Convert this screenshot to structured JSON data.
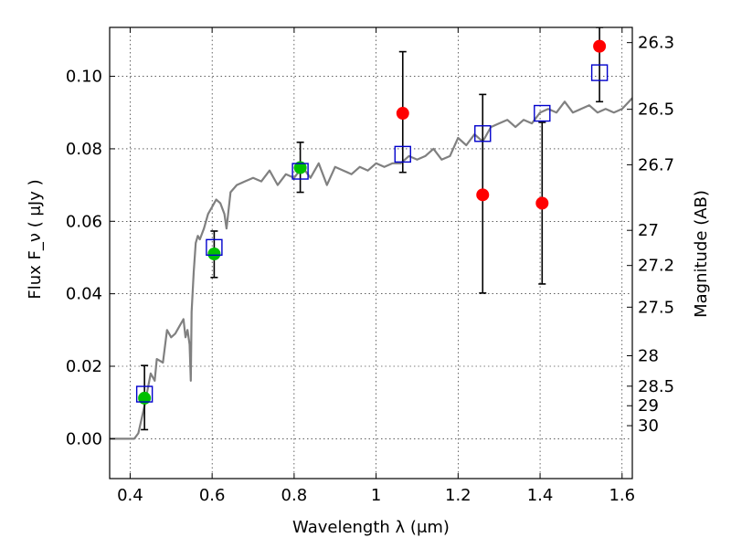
{
  "chart_data": {
    "type": "scatter",
    "xlabel": "Wavelength λ (μm)",
    "ylabel": "Flux F_ν ( μJy )",
    "y2label": "Magnitude (AB)",
    "xlim": [
      0.35,
      1.625
    ],
    "ylim": [
      -0.011,
      0.1135
    ],
    "xticks": [
      0.4,
      0.6,
      0.8,
      1.0,
      1.2,
      1.4,
      1.6
    ],
    "xtick_labels": [
      "0.4",
      "0.6",
      "0.8",
      "1",
      "1.2",
      "1.4",
      "1.6"
    ],
    "yticks": [
      0.0,
      0.02,
      0.04,
      0.06,
      0.08,
      0.1
    ],
    "ytick_labels": [
      "0.00",
      "0.02",
      "0.04",
      "0.06",
      "0.08",
      "0.10"
    ],
    "magnitude_ticks": [
      {
        "label": "26.3",
        "flux": 0.1093
      },
      {
        "label": "26.5",
        "flux": 0.0909
      },
      {
        "label": "26.7",
        "flux": 0.0756
      },
      {
        "label": "27",
        "flux": 0.0575
      },
      {
        "label": "27.2",
        "flux": 0.0478
      },
      {
        "label": "27.5",
        "flux": 0.0363
      },
      {
        "label": "28",
        "flux": 0.0229
      },
      {
        "label": "28.5",
        "flux": 0.0145
      },
      {
        "label": "29",
        "flux": 0.0091
      },
      {
        "label": "30",
        "flux": 0.0036
      }
    ],
    "grid": true,
    "colors": {
      "model": "#808080",
      "green_points": "#00c000",
      "red_points": "#ff0000",
      "model_boxes": "#0000cc",
      "errorbars": "#000000"
    },
    "series": [
      {
        "name": "model SED",
        "style": "line",
        "x": [
          0.35,
          0.41,
          0.42,
          0.435,
          0.45,
          0.46,
          0.465,
          0.48,
          0.49,
          0.5,
          0.51,
          0.52,
          0.53,
          0.535,
          0.54,
          0.545,
          0.548,
          0.55,
          0.555,
          0.56,
          0.565,
          0.57,
          0.58,
          0.59,
          0.6,
          0.61,
          0.62,
          0.63,
          0.635,
          0.645,
          0.66,
          0.68,
          0.7,
          0.72,
          0.74,
          0.76,
          0.78,
          0.8,
          0.82,
          0.84,
          0.86,
          0.88,
          0.9,
          0.92,
          0.94,
          0.96,
          0.98,
          1.0,
          1.02,
          1.04,
          1.06,
          1.08,
          1.1,
          1.12,
          1.14,
          1.16,
          1.18,
          1.2,
          1.22,
          1.24,
          1.26,
          1.28,
          1.3,
          1.32,
          1.34,
          1.36,
          1.38,
          1.4,
          1.42,
          1.44,
          1.46,
          1.48,
          1.5,
          1.52,
          1.54,
          1.56,
          1.58,
          1.6,
          1.625
        ],
        "y": [
          0.0,
          0.0,
          0.0015,
          0.009,
          0.018,
          0.016,
          0.022,
          0.021,
          0.03,
          0.028,
          0.029,
          0.031,
          0.033,
          0.028,
          0.03,
          0.026,
          0.016,
          0.035,
          0.046,
          0.054,
          0.056,
          0.055,
          0.058,
          0.062,
          0.064,
          0.066,
          0.065,
          0.062,
          0.058,
          0.068,
          0.07,
          0.071,
          0.072,
          0.071,
          0.074,
          0.07,
          0.073,
          0.072,
          0.075,
          0.072,
          0.076,
          0.07,
          0.075,
          0.074,
          0.073,
          0.075,
          0.074,
          0.076,
          0.075,
          0.076,
          0.076,
          0.078,
          0.077,
          0.078,
          0.08,
          0.077,
          0.078,
          0.083,
          0.081,
          0.084,
          0.082,
          0.086,
          0.087,
          0.088,
          0.086,
          0.088,
          0.087,
          0.09,
          0.091,
          0.09,
          0.093,
          0.09,
          0.091,
          0.092,
          0.09,
          0.091,
          0.09,
          0.091,
          0.094
        ]
      },
      {
        "name": "green detections",
        "style": "circle",
        "x": [
          0.435,
          0.605,
          0.815
        ],
        "y": [
          0.0112,
          0.051,
          0.0748
        ],
        "yerr_low": [
          0.0025,
          0.0445,
          0.068
        ],
        "yerr_high": [
          0.0202,
          0.0573,
          0.0818
        ]
      },
      {
        "name": "red photometry",
        "style": "circle",
        "x": [
          1.065,
          1.26,
          1.405,
          1.545
        ],
        "y": [
          0.0898,
          0.0673,
          0.065,
          0.1083
        ],
        "yerr_low": [
          0.0735,
          0.0402,
          0.0427,
          0.093
        ],
        "yerr_high": [
          0.1068,
          0.095,
          0.0873,
          0.1135
        ]
      },
      {
        "name": "model band fluxes",
        "style": "square",
        "x": [
          0.435,
          0.605,
          0.815,
          1.065,
          1.26,
          1.405,
          1.545
        ],
        "y": [
          0.0123,
          0.0528,
          0.0738,
          0.0785,
          0.0842,
          0.0898,
          0.101
        ]
      }
    ]
  }
}
